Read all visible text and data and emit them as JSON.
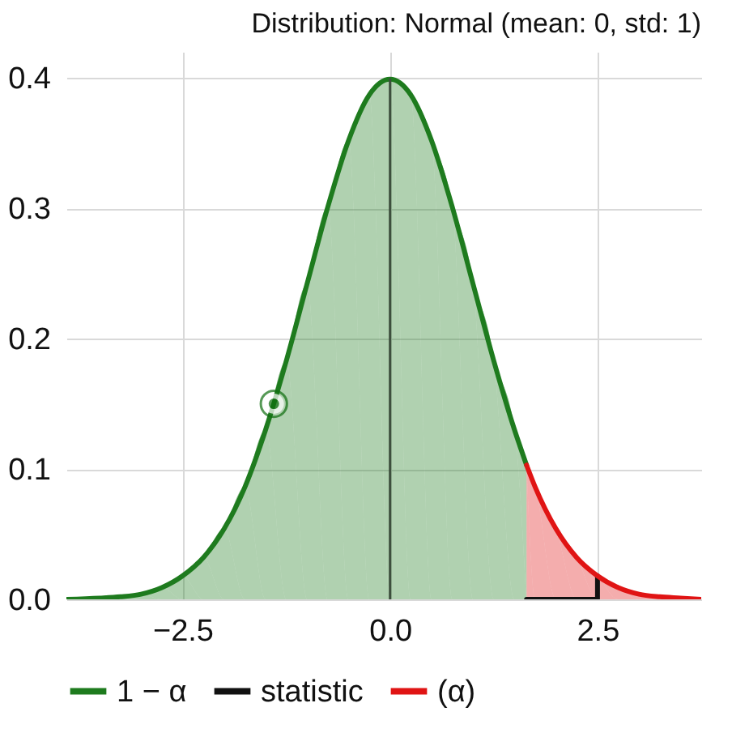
{
  "chart_data": {
    "type": "area",
    "title": "Distribution: Normal (mean: 0, std: 1)",
    "xlim": [
      -3.9,
      3.75
    ],
    "xticks": [
      -2.5,
      {
        "value": 0,
        "label": "0.0"
      },
      2.5
    ],
    "ylim": [
      0,
      0.42
    ],
    "yticks": [
      {
        "value": 0,
        "label": "0.0"
      },
      0.1,
      0.2,
      0.3,
      0.4
    ],
    "grid": true,
    "legend": "bottom",
    "line_style": "solid",
    "series": [
      {
        "name": "1 − α",
        "color": "#1e7b1e",
        "x": [
          -3.9,
          -3.5,
          -3.25,
          -3.0,
          -2.75,
          -2.5,
          -2.25,
          -2.0,
          -1.75,
          -1.5,
          -1.25,
          -1.0,
          -0.75,
          -0.5,
          -0.25,
          0,
          0.25,
          0.5,
          0.75,
          1.0,
          1.25,
          1.5,
          1.645
        ],
        "values": [
          0.0,
          0.001,
          0.002,
          0.004,
          0.009,
          0.018,
          0.032,
          0.054,
          0.086,
          0.13,
          0.183,
          0.242,
          0.301,
          0.352,
          0.387,
          0.399,
          0.387,
          0.352,
          0.301,
          0.242,
          0.183,
          0.13,
          0.103
        ]
      },
      {
        "name": "statistic",
        "type": "line",
        "color": "#111111",
        "x": [
          1.645,
          2.5,
          2.5
        ],
        "values": [
          0,
          0,
          0.018
        ]
      },
      {
        "name": "(α)",
        "color": "#e01414",
        "x": [
          1.645,
          1.75,
          2.0,
          2.25,
          2.5,
          2.75,
          3.0,
          3.25,
          3.5,
          3.75
        ],
        "values": [
          0.103,
          0.086,
          0.054,
          0.032,
          0.018,
          0.009,
          0.004,
          0.002,
          0.001,
          0.0
        ]
      },
      {
        "type": "line",
        "color": "#3d4f3d",
        "x": [
          0,
          0
        ],
        "values": [
          0,
          0.399
        ]
      },
      {
        "type": "scatter",
        "color": "#0f6e0f",
        "marker": "circle",
        "x": [
          -1.4
        ],
        "values": [
          0.15
        ]
      }
    ]
  }
}
